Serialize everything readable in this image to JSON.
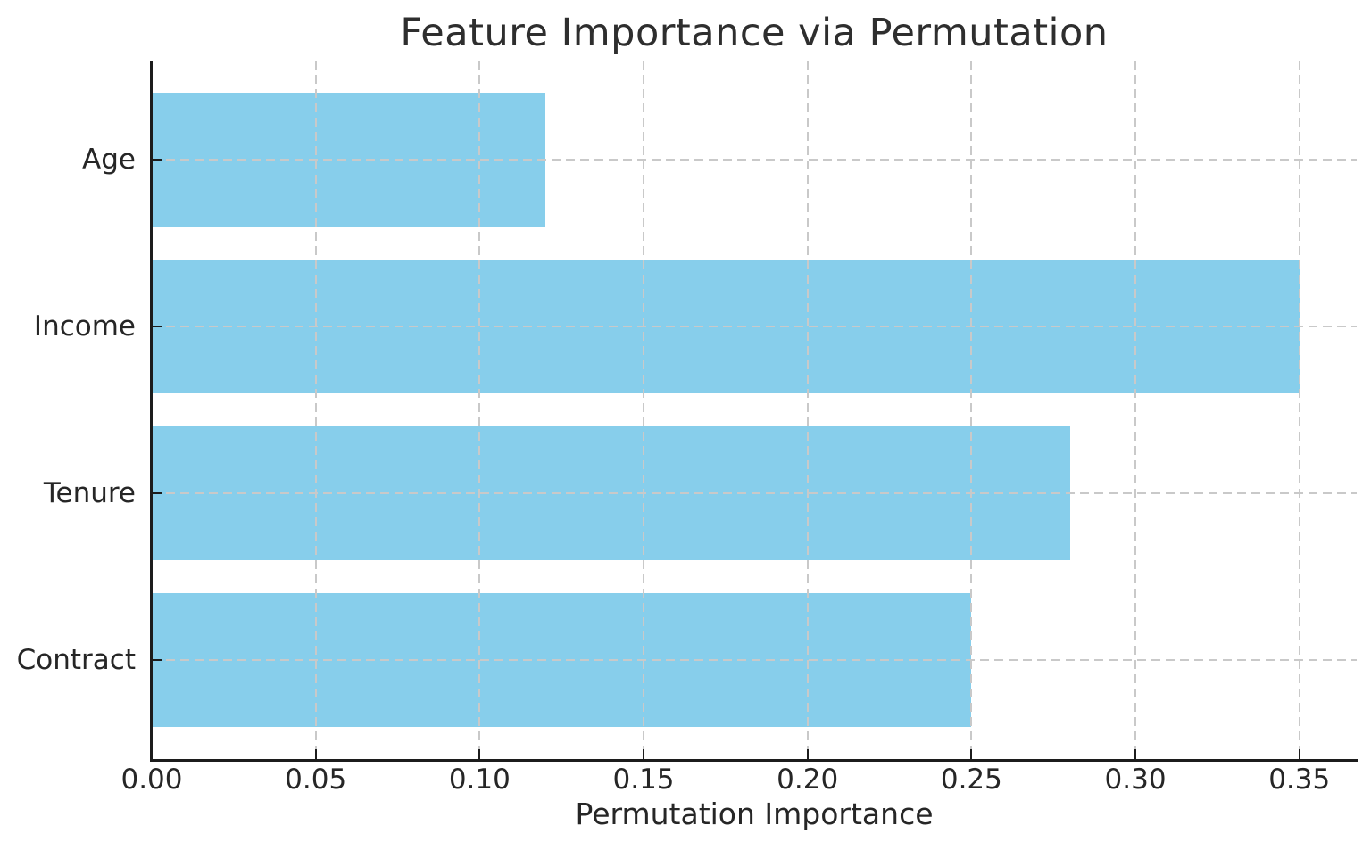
{
  "chart_data": {
    "type": "bar",
    "orientation": "horizontal",
    "title": "Feature Importance via Permutation",
    "xlabel": "Permutation Importance",
    "ylabel": "",
    "categories": [
      "Age",
      "Income",
      "Tenure",
      "Contract"
    ],
    "values": [
      0.12,
      0.35,
      0.28,
      0.25
    ],
    "xticks": [
      {
        "value": 0.0,
        "label": "0.00"
      },
      {
        "value": 0.05,
        "label": "0.05"
      },
      {
        "value": 0.1,
        "label": "0.10"
      },
      {
        "value": 0.15,
        "label": "0.15"
      },
      {
        "value": 0.2,
        "label": "0.20"
      },
      {
        "value": 0.25,
        "label": "0.25"
      },
      {
        "value": 0.3,
        "label": "0.30"
      },
      {
        "value": 0.35,
        "label": "0.35"
      }
    ],
    "xlim": [
      0,
      0.3675
    ],
    "grid": "dashed",
    "legend": "none",
    "colors": {
      "bar": "#87CEEB",
      "grid": "#c9c9c9",
      "axis": "#1c1c1c",
      "text": "#262626"
    }
  }
}
